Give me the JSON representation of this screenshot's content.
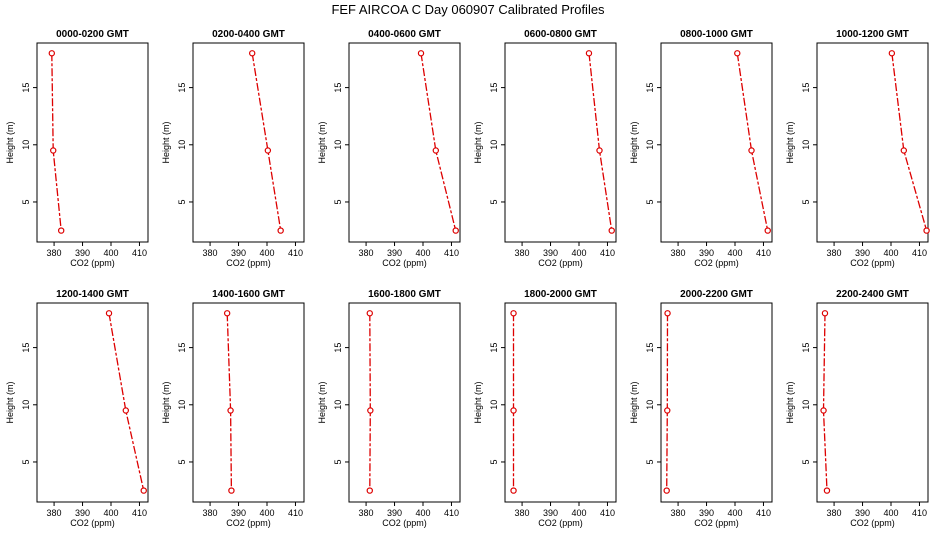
{
  "title": "FEF AIRCOA C  Day 060907  Calibrated Profiles",
  "chart_data": {
    "type": "line",
    "layout": {
      "rows": 2,
      "cols": 6
    },
    "xlabel": "CO2 (ppm)",
    "ylabel": "Height (m)",
    "xlim": [
      374,
      413
    ],
    "ylim": [
      1.5,
      18.9
    ],
    "xticks": [
      380,
      390,
      400,
      410
    ],
    "yticks": [
      5,
      10,
      15
    ],
    "heights": [
      18,
      9.5,
      2.5
    ],
    "colors": {
      "line": "#dd0000",
      "marker": "#dd0000"
    },
    "panels": [
      {
        "title": "0000-0200 GMT",
        "co2": [
          379.2,
          379.7,
          382.5
        ]
      },
      {
        "title": "0200-0400 GMT",
        "co2": [
          394.8,
          400.3,
          404.8
        ]
      },
      {
        "title": "0400-0600 GMT",
        "co2": [
          399.3,
          404.5,
          411.5
        ]
      },
      {
        "title": "0600-0800 GMT",
        "co2": [
          403.5,
          407.2,
          411.5
        ]
      },
      {
        "title": "0800-1000 GMT",
        "co2": [
          400.8,
          405.8,
          411.5
        ]
      },
      {
        "title": "1000-1200 GMT",
        "co2": [
          400.3,
          404.5,
          412.5
        ]
      },
      {
        "title": "1200-1400 GMT",
        "co2": [
          399.3,
          405.2,
          411.5
        ]
      },
      {
        "title": "1400-1600 GMT",
        "co2": [
          386.0,
          387.2,
          387.5
        ]
      },
      {
        "title": "1600-1800 GMT",
        "co2": [
          381.3,
          381.5,
          381.3
        ]
      },
      {
        "title": "1800-2000 GMT",
        "co2": [
          377.0,
          377.0,
          377.0
        ]
      },
      {
        "title": "2000-2200 GMT",
        "co2": [
          376.3,
          376.2,
          376.0
        ]
      },
      {
        "title": "2200-2400 GMT",
        "co2": [
          376.8,
          376.3,
          377.5
        ]
      }
    ]
  }
}
